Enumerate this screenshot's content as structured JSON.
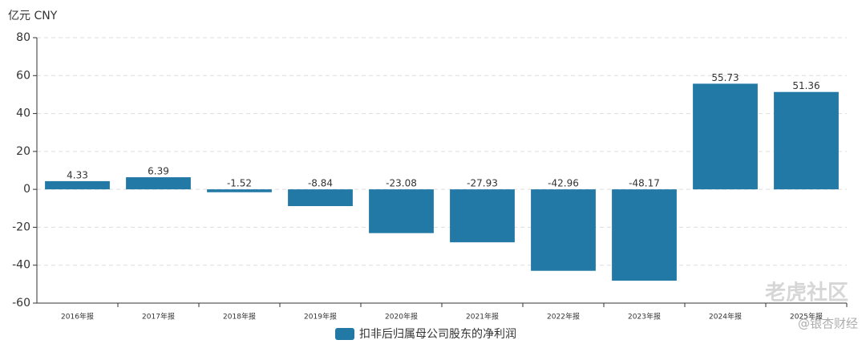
{
  "chart_data": {
    "type": "bar",
    "y_unit": "亿元  CNY",
    "categories": [
      "2016年报",
      "2017年报",
      "2018年报",
      "2019年报",
      "2020年报",
      "2021年报",
      "2022年报",
      "2023年报",
      "2024年报",
      "2025年报"
    ],
    "series": [
      {
        "name": "扣非后归属母公司股东的净利润",
        "color": "#2279a5",
        "values": [
          4.33,
          6.39,
          -1.52,
          -8.84,
          -23.08,
          -27.93,
          -42.96,
          -48.17,
          55.73,
          51.36
        ]
      }
    ],
    "ylim": [
      -60,
      80
    ],
    "yticks": [
      -60,
      -40,
      -20,
      0,
      20,
      40,
      60,
      80
    ],
    "grid": true
  },
  "watermarks": [
    "老虎社区",
    "@银杏财经"
  ]
}
